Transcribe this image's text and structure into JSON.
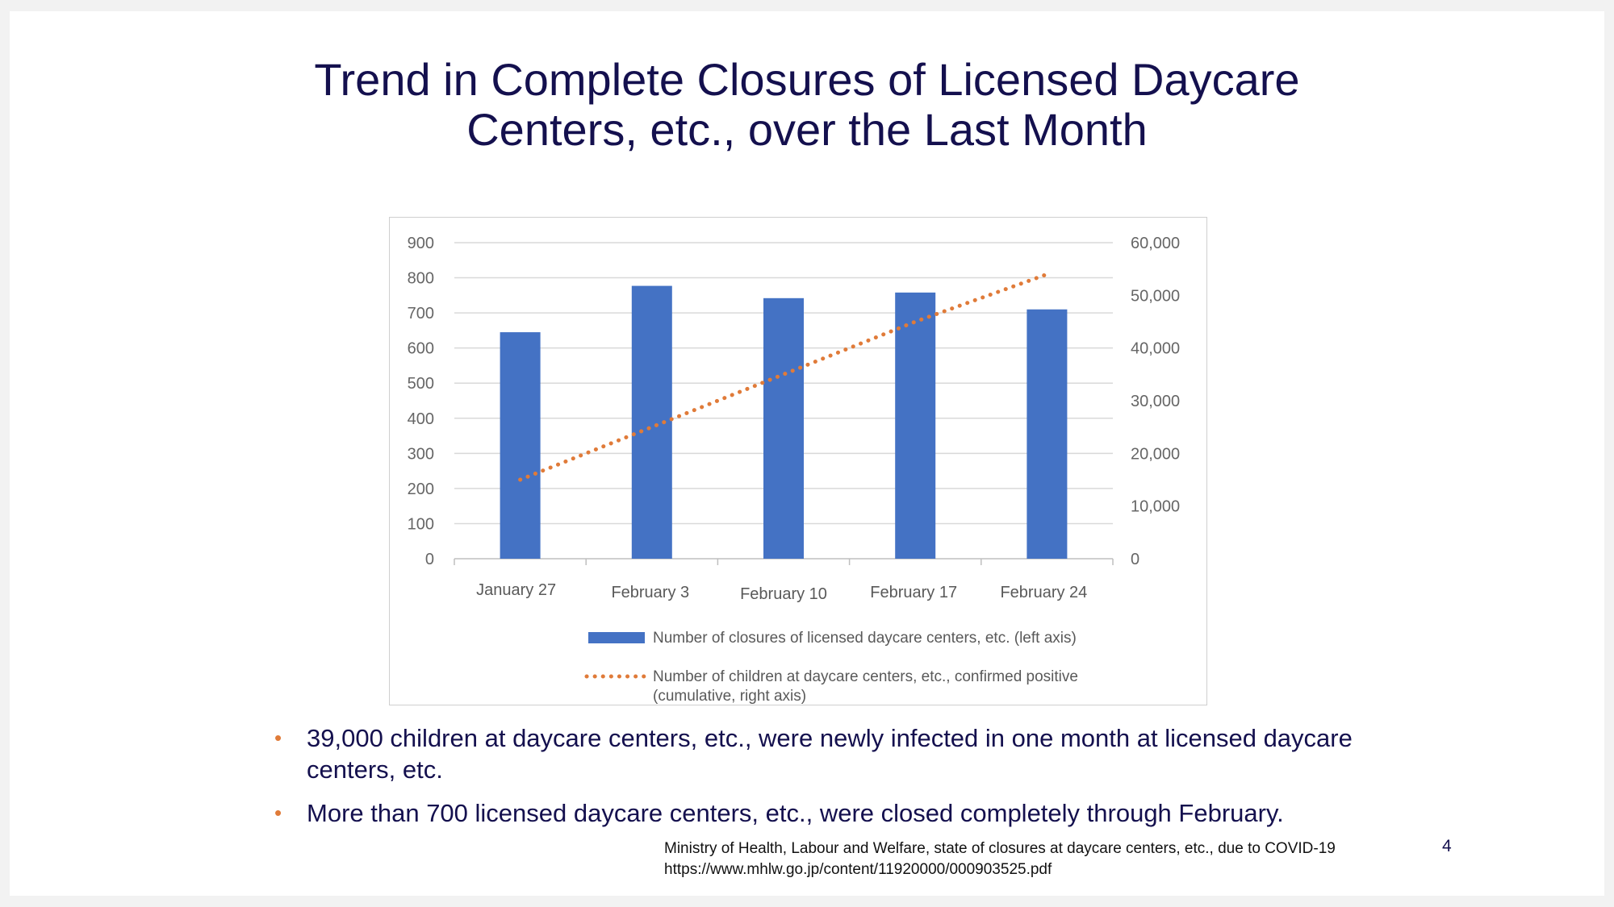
{
  "slide": {
    "title_lines": [
      "Trend in Complete Closures of Licensed Daycare",
      "Centers, etc., over the Last Month"
    ],
    "bullets": [
      "39,000 children at daycare centers, etc., were newly infected in one month at licensed daycare centers, etc.",
      "More than 700 licensed daycare centers, etc., were closed completely through February."
    ],
    "source_lines": [
      "Ministry of Health, Labour and Welfare, state of closures at daycare centers, etc., due to COVID-19",
      "https://www.mhlw.go.jp/content/11920000/000903525.pdf"
    ],
    "page_number": "4"
  },
  "chart_data": {
    "type": "bar",
    "categories": [
      "January 27",
      "February 3",
      "February 10",
      "February 17",
      "February 24"
    ],
    "series": [
      {
        "name": "Number of closures of licensed daycare centers, etc. (left axis)",
        "type": "bar",
        "axis": "left",
        "color": "#4472c4",
        "values": [
          645,
          777,
          742,
          758,
          710
        ]
      },
      {
        "name": "Number of children at daycare centers, etc., confirmed positive (cumulative, right axis)",
        "type": "line",
        "style": "dotted",
        "axis": "right",
        "color": "#e07b39",
        "values": [
          15000,
          25000,
          35000,
          45000,
          54000
        ]
      }
    ],
    "y_left": {
      "ylim": [
        0,
        900
      ],
      "ticks": [
        "900",
        "800",
        "700",
        "600",
        "500",
        "400",
        "300",
        "200",
        "100",
        "0"
      ]
    },
    "y_right": {
      "ylim": [
        0,
        60000
      ],
      "ticks": [
        "60,000",
        "50,000",
        "40,000",
        "30,000",
        "20,000",
        "10,000",
        "0"
      ]
    },
    "legend": {
      "placement": "bottom",
      "entries": [
        "Number of closures of licensed daycare centers, etc. (left axis)",
        "Number of children at daycare centers, etc., confirmed positive",
        "(cumulative, right axis)"
      ]
    },
    "grid": true
  }
}
